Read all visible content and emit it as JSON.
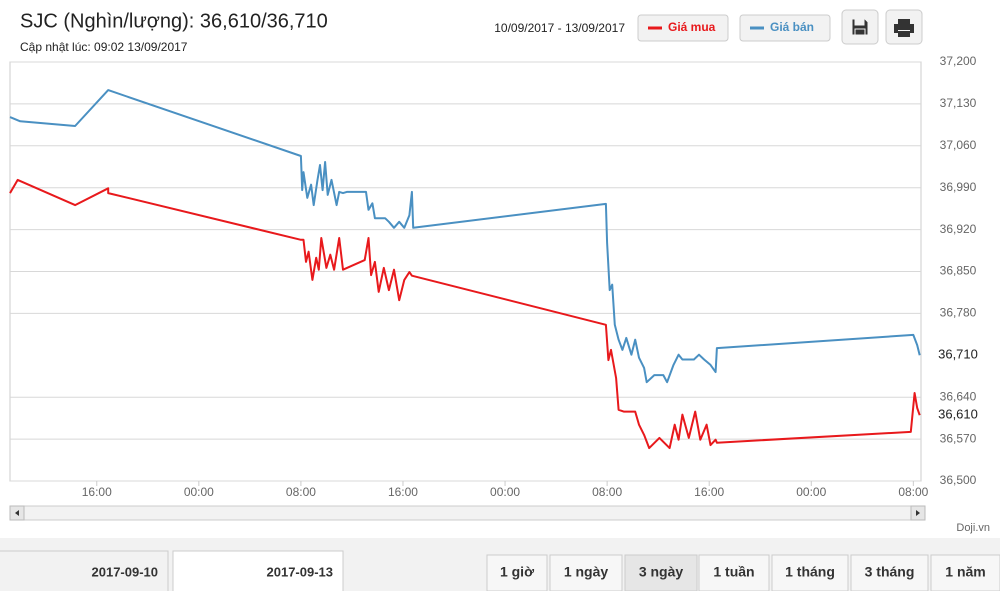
{
  "chart_data": {
    "type": "line",
    "title": "SJC (Nghìn/lượng): 36,610/36,710",
    "subtitle": "Cập nhật lúc: 09:02 13/09/2017",
    "date_range": "10/09/2017 - 13/09/2017",
    "source": "Doji.vn",
    "xlim": [
      9.2,
      80.6
    ],
    "xticks": [
      {
        "value": 16,
        "label": "16:00"
      },
      {
        "value": 24,
        "label": "00:00"
      },
      {
        "value": 32,
        "label": "08:00"
      },
      {
        "value": 40,
        "label": "16:00"
      },
      {
        "value": 48,
        "label": "00:00"
      },
      {
        "value": 56,
        "label": "08:00"
      },
      {
        "value": 64,
        "label": "16:00"
      },
      {
        "value": 72,
        "label": "00:00"
      },
      {
        "value": 80,
        "label": "08:00"
      }
    ],
    "ylim": [
      36500,
      37200
    ],
    "yticks": [
      {
        "value": 37200,
        "label": "37,200"
      },
      {
        "value": 37130,
        "label": "37,130"
      },
      {
        "value": 37060,
        "label": "37,060"
      },
      {
        "value": 36990,
        "label": "36,990"
      },
      {
        "value": 36920,
        "label": "36,920"
      },
      {
        "value": 36850,
        "label": "36,850"
      },
      {
        "value": 36780,
        "label": "36,780"
      },
      {
        "value": 36640,
        "label": "36,640"
      },
      {
        "value": 36570,
        "label": "36,570"
      },
      {
        "value": 36500,
        "label": "36,500"
      }
    ],
    "grid": true,
    "series": [
      {
        "name": "Giá mua",
        "color": "#e8191c",
        "last": {
          "value": 36610,
          "label": "36,610"
        },
        "x": [
          9.2,
          9.8,
          14.3,
          16.9,
          16.9,
          32.0,
          32.2,
          32.4,
          32.6,
          32.9,
          33.2,
          33.4,
          33.6,
          34.0,
          34.3,
          34.6,
          35.0,
          35.3,
          37.0,
          37.3,
          37.5,
          37.8,
          38.1,
          38.5,
          38.9,
          39.3,
          39.7,
          40.1,
          40.5,
          40.7,
          55.9,
          56.1,
          56.3,
          56.7,
          56.9,
          57.3,
          58.2,
          58.5,
          58.9,
          59.3,
          60.1,
          60.9,
          61.3,
          61.6,
          61.9,
          62.4,
          62.9,
          63.3,
          63.8,
          64.1,
          64.5,
          64.6,
          79.8,
          80.1,
          80.3,
          80.5
        ],
        "values": [
          36981,
          37003,
          36961,
          36989,
          36981,
          36903,
          36903,
          36866,
          36883,
          36836,
          36873,
          36853,
          36906,
          36856,
          36878,
          36853,
          36906,
          36853,
          36869,
          36906,
          36844,
          36866,
          36816,
          36856,
          36819,
          36853,
          36802,
          36836,
          36849,
          36843,
          36761,
          36702,
          36719,
          36672,
          36619,
          36616,
          36616,
          36594,
          36577,
          36555,
          36572,
          36555,
          36594,
          36569,
          36611,
          36572,
          36616,
          36569,
          36594,
          36560,
          36569,
          36564,
          36582,
          36647,
          36622,
          36610
        ]
      },
      {
        "name": "Giá bán",
        "color": "#4a90c2",
        "last": {
          "value": 36710,
          "label": "36,710"
        },
        "x": [
          9.2,
          10.0,
          14.3,
          16.9,
          32.0,
          32.1,
          32.2,
          32.5,
          32.8,
          33.0,
          33.3,
          33.5,
          33.7,
          33.9,
          34.1,
          34.4,
          34.8,
          35.0,
          35.3,
          35.6,
          37.1,
          37.3,
          37.6,
          37.8,
          38.6,
          38.9,
          39.3,
          39.7,
          40.1,
          40.5,
          40.7,
          40.8,
          55.9,
          56.0,
          56.2,
          56.4,
          56.6,
          56.9,
          57.2,
          57.5,
          57.9,
          58.2,
          58.5,
          58.9,
          59.1,
          59.7,
          60.4,
          60.7,
          61.2,
          61.6,
          61.9,
          62.8,
          63.2,
          63.6,
          64.1,
          64.5,
          64.6,
          80.0,
          80.3,
          80.5
        ],
        "values": [
          37108,
          37101,
          37093,
          37153,
          37043,
          36986,
          37016,
          36973,
          36995,
          36961,
          37003,
          37028,
          36986,
          37033,
          36978,
          37003,
          36961,
          36983,
          36981,
          36983,
          36983,
          36953,
          36964,
          36939,
          36939,
          36933,
          36923,
          36933,
          36923,
          36944,
          36983,
          36923,
          36963,
          36898,
          36819,
          36828,
          36761,
          36736,
          36719,
          36739,
          36711,
          36736,
          36706,
          36689,
          36665,
          36677,
          36677,
          36665,
          36694,
          36711,
          36703,
          36703,
          36711,
          36703,
          36694,
          36682,
          36722,
          36744,
          36727,
          36710
        ]
      }
    ]
  },
  "navigator": [
    "2017-09-10",
    "2017-09-13"
  ],
  "ranges": [
    "1 giờ",
    "1 ngày",
    "3 ngày",
    "1 tuần",
    "1 tháng",
    "3 tháng",
    "1 năm"
  ],
  "selected_range": 2
}
